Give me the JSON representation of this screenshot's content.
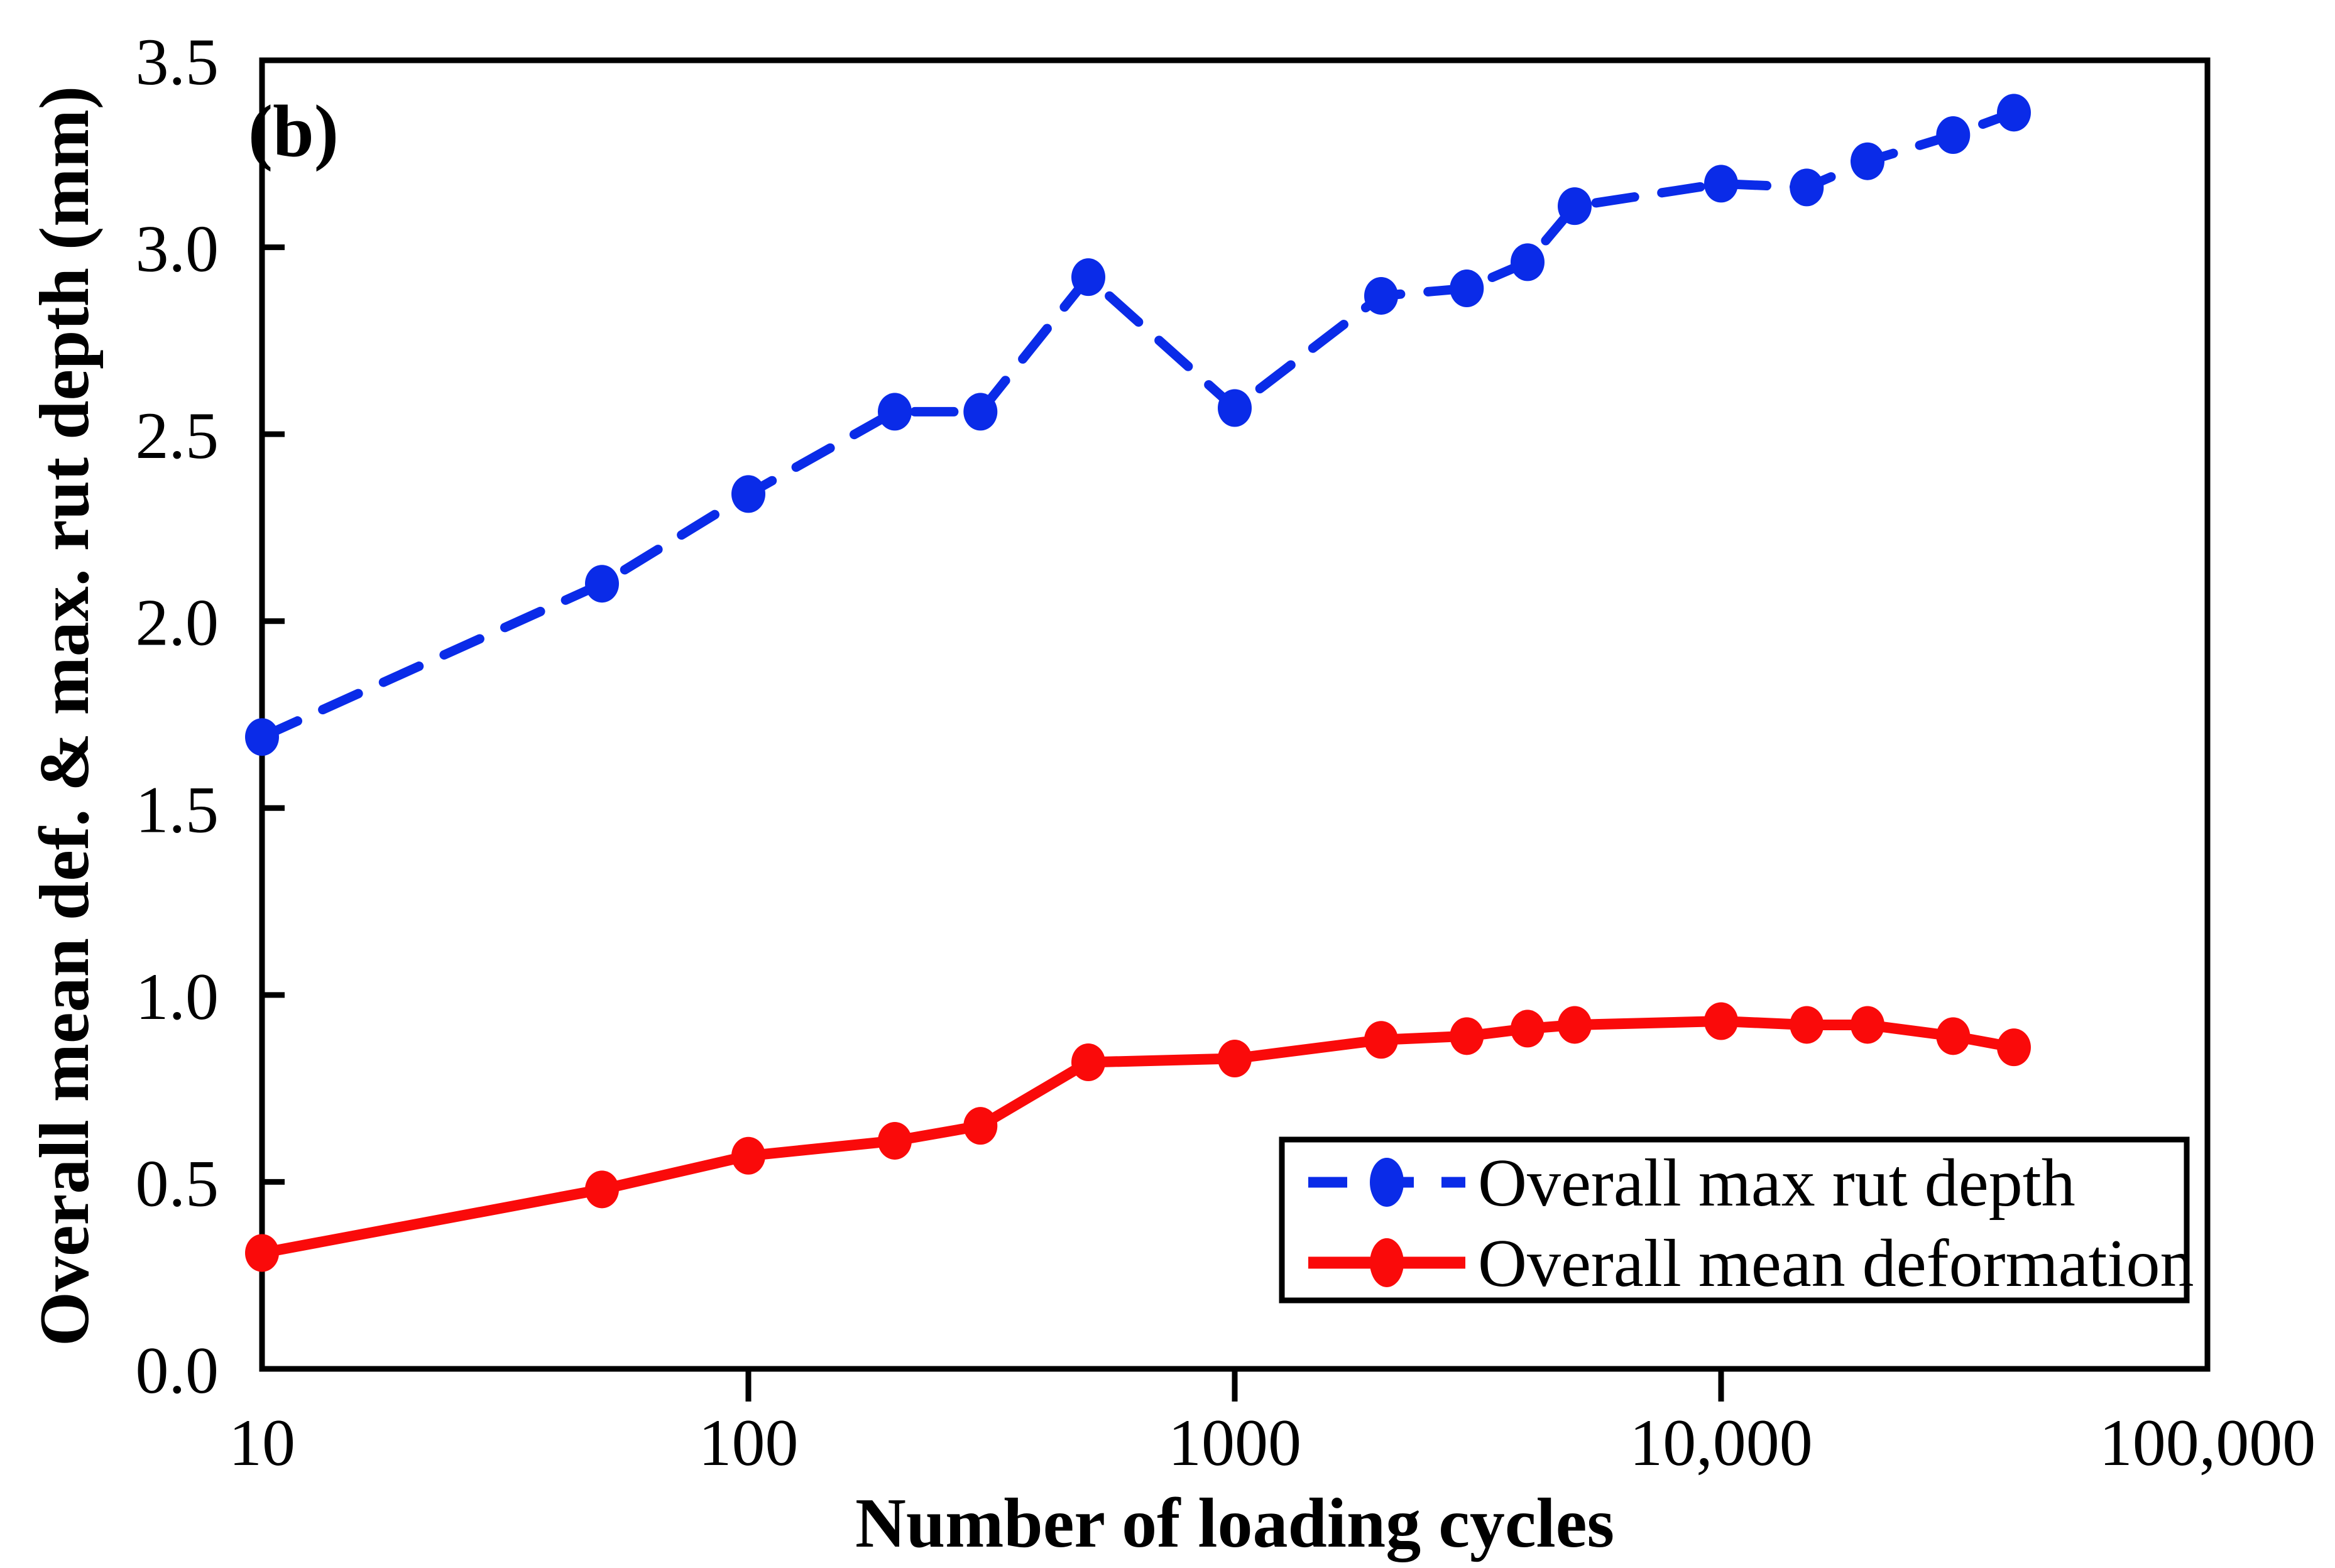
{
  "panel_label": "(b)",
  "colors": {
    "axis": "#000000",
    "max_rut": "#0a2be8",
    "mean_def": "#fa0a0a"
  },
  "chart_data": {
    "type": "line",
    "title": "",
    "panel_label": "(b)",
    "x_axis": {
      "label": "Number of loading cycles",
      "scale": "log",
      "range": [
        10,
        100000
      ],
      "ticks": [
        10,
        100,
        1000,
        10000,
        100000
      ],
      "tick_labels": [
        "10",
        "100",
        "1000",
        "10,000",
        "100,000"
      ]
    },
    "y_axis": {
      "label": "Overall mean def. & max. rut depth (mm)",
      "scale": "linear",
      "range": [
        0,
        3.5
      ],
      "tick_step": 0.5,
      "tick_labels": [
        "0.0",
        "0.5",
        "1.0",
        "1.5",
        "2.0",
        "2.5",
        "3.0",
        "3.5"
      ]
    },
    "grid": false,
    "legend_position": "bottom-right",
    "x": [
      10,
      50,
      100,
      200,
      300,
      500,
      1000,
      2000,
      3000,
      4000,
      5000,
      10000,
      15000,
      20000,
      30000,
      40000
    ],
    "series": [
      {
        "name": "Overall max rut depth",
        "color": "#0a2be8",
        "line_style": "dashed",
        "marker": "circle",
        "values": [
          1.69,
          2.1,
          2.34,
          2.56,
          2.56,
          2.92,
          2.57,
          2.87,
          2.89,
          2.96,
          3.11,
          3.17,
          3.16,
          3.23,
          3.3,
          3.36
        ]
      },
      {
        "name": "Overall mean deformation",
        "color": "#fa0a0a",
        "line_style": "solid",
        "marker": "circle",
        "values": [
          0.31,
          0.48,
          0.57,
          0.61,
          0.65,
          0.82,
          0.83,
          0.88,
          0.89,
          0.91,
          0.92,
          0.93,
          0.92,
          0.92,
          0.89,
          0.86
        ]
      }
    ]
  }
}
